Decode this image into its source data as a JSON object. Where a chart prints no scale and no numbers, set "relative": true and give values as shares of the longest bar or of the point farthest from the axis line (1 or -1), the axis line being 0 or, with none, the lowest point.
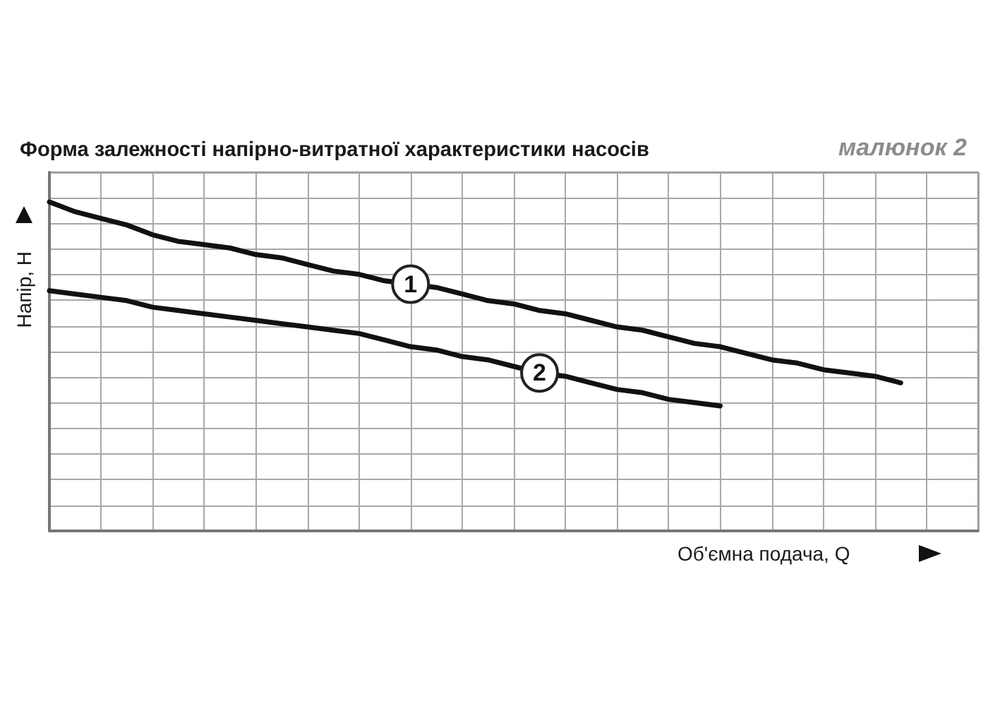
{
  "chart_data": {
    "type": "line",
    "title": "Форма залежності напірно-витратної характеристики насосів",
    "xlabel": "Об'ємна подача, Q",
    "ylabel": "Напір, H",
    "annotations": [
      "малюнок 2"
    ],
    "relative": true,
    "grid": true,
    "marker": "none",
    "line_style": "solid",
    "categories": [
      null,
      null,
      null,
      null,
      null,
      null,
      null,
      null,
      null,
      null,
      null,
      null,
      null,
      null,
      null,
      null,
      null,
      null,
      null,
      null,
      null,
      null,
      null,
      null,
      null,
      null,
      null,
      null,
      null,
      null,
      null,
      null,
      null,
      null,
      null,
      null,
      null
    ],
    "series": [
      {
        "name": "1",
        "color": "#111111",
        "values": [
          1.0,
          0.97,
          0.95,
          0.93,
          0.9,
          0.88,
          0.87,
          0.86,
          0.84,
          0.83,
          0.81,
          0.79,
          0.78,
          0.76,
          0.75,
          0.74,
          0.72,
          0.7,
          0.69,
          0.67,
          0.66,
          0.64,
          0.62,
          0.61,
          0.59,
          0.57,
          0.56,
          0.54,
          0.52,
          0.51,
          0.49,
          0.48,
          0.47,
          0.45,
          null,
          null,
          null
        ]
      },
      {
        "name": "2",
        "color": "#111111",
        "values": [
          0.73,
          0.72,
          0.71,
          0.7,
          0.68,
          0.67,
          0.66,
          0.65,
          0.64,
          0.63,
          0.62,
          0.61,
          0.6,
          0.58,
          0.56,
          0.55,
          0.53,
          0.52,
          0.5,
          0.48,
          0.47,
          0.45,
          0.43,
          0.42,
          0.4,
          0.39,
          0.38,
          null,
          null,
          null,
          null,
          null,
          null,
          null,
          null,
          null,
          null
        ]
      }
    ]
  }
}
